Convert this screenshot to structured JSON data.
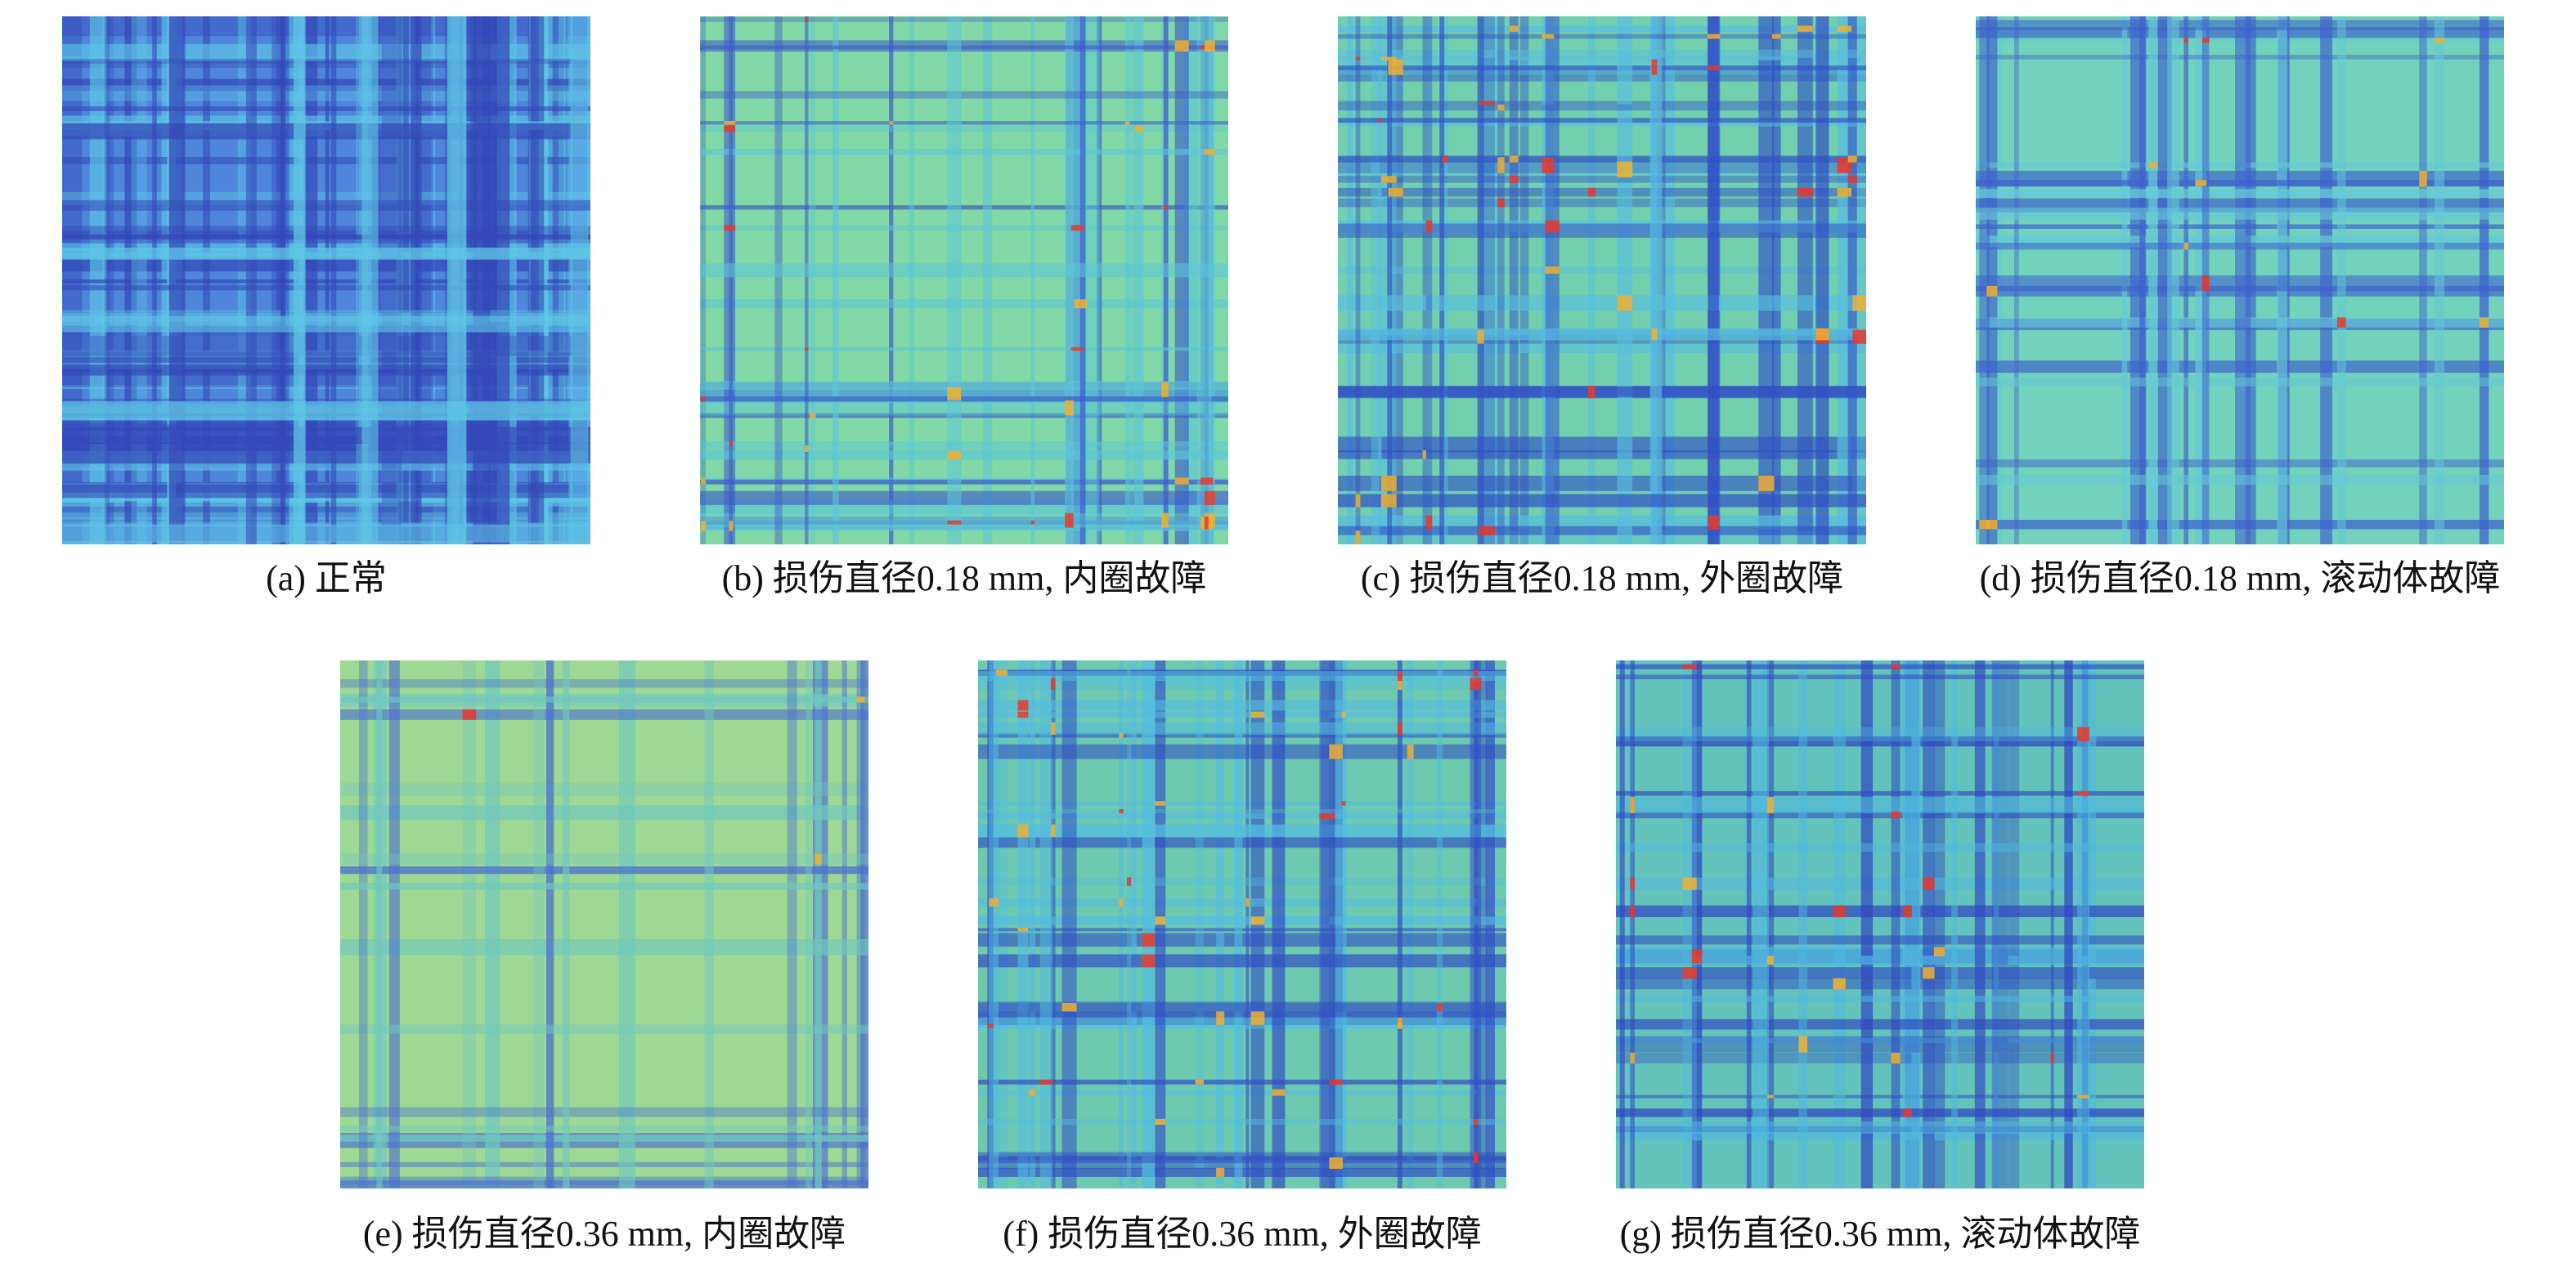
{
  "panels": [
    {
      "caption": "(a) 正常"
    },
    {
      "caption": "(b) 损伤直径0.18 mm, 内圈故障"
    },
    {
      "caption": "(c) 损伤直径0.18 mm, 外圈故障"
    },
    {
      "caption": "(d) 损伤直径0.18 mm, 滚动体故障"
    },
    {
      "caption": "(e) 损伤直径0.36 mm, 内圈故障"
    },
    {
      "caption": "(f) 损伤直径0.36 mm, 外圈故障"
    },
    {
      "caption": "(g) 损伤直径0.36 mm, 滚动体故障"
    }
  ]
}
